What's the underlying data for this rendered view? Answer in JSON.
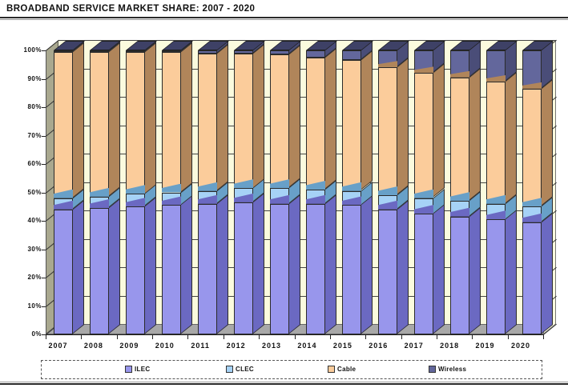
{
  "title": "BROADBAND SERVICE MARKET SHARE:  2007 - 2020",
  "chart_data": {
    "type": "bar",
    "stacked": true,
    "effect": "3d",
    "title": "BROADBAND SERVICE MARKET SHARE:  2007 - 2020",
    "categories": [
      "2007",
      "2008",
      "2009",
      "2010",
      "2011",
      "2012",
      "2013",
      "2014",
      "2015",
      "2016",
      "2017",
      "2018",
      "2019",
      "2020"
    ],
    "series": [
      {
        "name": "ILEC",
        "color": "#9896EC",
        "side_color": "#6B69C2",
        "values": [
          44,
          44.5,
          45,
          45.5,
          46,
          46.5,
          46,
          46,
          45.5,
          44,
          42.5,
          41.5,
          40.5,
          39.5
        ]
      },
      {
        "name": "CLEC",
        "color": "#A6D2F6",
        "side_color": "#68A0C8",
        "values": [
          4,
          4,
          4.5,
          4.5,
          4.5,
          5,
          5.5,
          5,
          5,
          5,
          5.5,
          5.5,
          5.5,
          5.5
        ]
      },
      {
        "name": "Cable",
        "color": "#FBCC9B",
        "side_color": "#B0855A",
        "values": [
          51.5,
          51,
          50,
          49.5,
          48.5,
          47.5,
          47,
          46.5,
          46,
          45,
          44,
          43.5,
          43,
          41.5
        ]
      },
      {
        "name": "Wireless",
        "color": "#63679C",
        "side_color": "#4A4D78",
        "top_color": "#3E4166",
        "values": [
          0.5,
          0.5,
          0.5,
          0.5,
          1,
          1,
          1.5,
          2.5,
          3.5,
          6,
          8,
          9.5,
          11,
          13.5
        ]
      }
    ],
    "ylim": [
      0,
      100
    ],
    "y_tick_labels": [
      "0%",
      "10%",
      "20%",
      "30%",
      "40%",
      "50%",
      "60%",
      "70%",
      "80%",
      "90%",
      "100%"
    ],
    "xlabel": "",
    "ylabel": "",
    "grid": "horizontal",
    "legend_position": "bottom",
    "wall_color": "#FBFBDE",
    "left_wall_color": "#A9A88F",
    "floor_color": "#A8A8A8",
    "gridline_color": "#444444"
  }
}
